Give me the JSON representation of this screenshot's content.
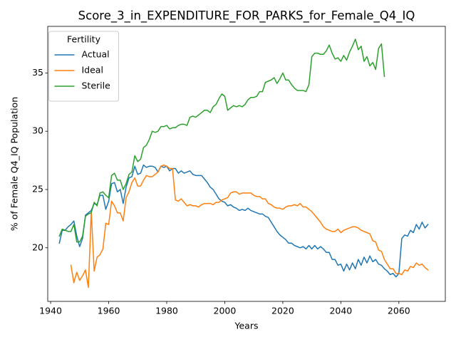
{
  "chart_data": {
    "type": "line",
    "title": "Score_3_in_EXPENDITURE_FOR_PARKS_for_Female_Q4_IQ",
    "xlabel": "Years",
    "ylabel": "% of Female Q4_IQ Population",
    "legend_title": "Fertility",
    "legend": "upper left",
    "grid": false,
    "xlim": [
      1939,
      2076
    ],
    "ylim": [
      15.4,
      39.0
    ],
    "xticks": [
      1940,
      1960,
      1980,
      2000,
      2020,
      2040,
      2060
    ],
    "yticks": [
      20,
      25,
      30,
      35
    ],
    "x": [
      1943,
      1944,
      1945,
      1946,
      1947,
      1948,
      1949,
      1950,
      1951,
      1952,
      1953,
      1954,
      1955,
      1956,
      1957,
      1958,
      1959,
      1960,
      1961,
      1962,
      1963,
      1964,
      1965,
      1966,
      1967,
      1968,
      1969,
      1970,
      1971,
      1972,
      1973,
      1974,
      1975,
      1976,
      1977,
      1978,
      1979,
      1980,
      1981,
      1982,
      1983,
      1984,
      1985,
      1986,
      1987,
      1988,
      1989,
      1990,
      1991,
      1992,
      1993,
      1994,
      1995,
      1996,
      1997,
      1998,
      1999,
      2000,
      2001,
      2002,
      2003,
      2004,
      2005,
      2006,
      2007,
      2008,
      2009,
      2010,
      2011,
      2012,
      2013,
      2014,
      2015,
      2016,
      2017,
      2018,
      2019,
      2020,
      2021,
      2022,
      2023,
      2024,
      2025,
      2026,
      2027,
      2028,
      2029,
      2030,
      2031,
      2032,
      2033,
      2034,
      2035,
      2036,
      2037,
      2038,
      2039,
      2040,
      2041,
      2042,
      2043,
      2044,
      2045,
      2046,
      2047,
      2048,
      2049,
      2050,
      2051,
      2052,
      2053,
      2054,
      2055,
      2056,
      2057,
      2058,
      2059,
      2060,
      2061,
      2062,
      2063,
      2064,
      2065,
      2066,
      2067,
      2068,
      2069,
      2070
    ],
    "series": [
      {
        "name": "Actual",
        "color": "#1f77b4",
        "values": [
          20.4,
          21.5,
          21.5,
          21.8,
          22.0,
          22.3,
          21.0,
          20.1,
          20.8,
          22.8,
          23.0,
          23.2,
          23.8,
          23.7,
          24.5,
          24.5,
          23.3,
          24.0,
          25.5,
          25.6,
          24.8,
          25.0,
          23.8,
          25.2,
          26.0,
          26.1,
          27.0,
          26.3,
          26.4,
          27.1,
          26.9,
          27.0,
          27.0,
          26.9,
          26.5,
          27.0,
          26.9,
          27.0,
          26.6,
          26.8,
          26.8,
          26.4,
          26.6,
          26.4,
          26.5,
          26.6,
          26.3,
          26.2,
          26.2,
          26.2,
          25.9,
          25.6,
          25.2,
          25.0,
          24.6,
          24.2,
          24.0,
          23.9,
          23.6,
          23.7,
          23.5,
          23.4,
          23.2,
          23.3,
          23.2,
          23.4,
          23.2,
          23.1,
          23.0,
          22.9,
          22.9,
          22.7,
          22.6,
          22.2,
          21.8,
          21.4,
          21.1,
          20.9,
          20.7,
          20.4,
          20.4,
          20.2,
          20.1,
          20.0,
          20.1,
          19.9,
          20.2,
          19.9,
          20.2,
          19.9,
          20.1,
          19.9,
          19.6,
          19.6,
          19.0,
          19.0,
          18.5,
          18.6,
          18.0,
          18.6,
          18.1,
          18.7,
          18.2,
          19.0,
          18.5,
          19.2,
          18.7,
          19.3,
          18.8,
          19.0,
          18.6,
          18.5,
          18.2,
          18.0,
          17.7,
          17.8,
          17.5,
          17.8,
          20.8,
          21.1,
          21.0,
          21.5,
          21.3,
          22.0,
          21.6,
          22.2,
          21.7,
          22.0
        ]
      },
      {
        "name": "Ideal",
        "color": "#ff7f0e",
        "values": [
          null,
          null,
          null,
          null,
          18.5,
          17.0,
          17.9,
          17.2,
          17.6,
          18.1,
          16.6,
          23.1,
          18.0,
          19.2,
          19.4,
          19.9,
          22.1,
          22.0,
          24.0,
          23.6,
          23.0,
          23.0,
          22.3,
          24.3,
          24.8,
          25.6,
          26.0,
          25.3,
          25.3,
          25.8,
          26.2,
          26.1,
          26.1,
          26.3,
          26.5,
          27.0,
          27.1,
          27.0,
          26.8,
          26.8,
          24.1,
          24.0,
          24.2,
          23.9,
          23.6,
          23.7,
          23.6,
          23.6,
          23.5,
          23.7,
          23.8,
          23.8,
          23.8,
          23.7,
          23.9,
          23.9,
          24.1,
          24.2,
          24.3,
          24.7,
          24.8,
          24.8,
          24.6,
          24.7,
          24.7,
          24.7,
          24.7,
          24.5,
          24.4,
          24.4,
          24.2,
          24.2,
          23.8,
          23.7,
          23.5,
          23.4,
          23.4,
          23.3,
          23.5,
          23.6,
          23.6,
          23.7,
          23.6,
          23.8,
          23.5,
          23.5,
          23.3,
          23.1,
          22.8,
          22.5,
          22.2,
          21.8,
          21.6,
          21.5,
          21.4,
          21.4,
          21.6,
          21.3,
          21.5,
          21.6,
          21.7,
          21.8,
          21.8,
          21.7,
          21.5,
          21.4,
          21.3,
          21.2,
          20.6,
          20.5,
          19.8,
          19.7,
          19.0,
          18.6,
          18.2,
          18.2,
          17.8,
          17.8,
          17.7,
          18.1,
          18.0,
          18.4,
          18.3,
          18.7,
          18.5,
          18.6,
          18.3,
          18.1
        ]
      },
      {
        "name": "Sterile",
        "color": "#2ca02c",
        "values": [
          21.0,
          21.6,
          21.5,
          21.4,
          21.4,
          22.0,
          20.5,
          20.5,
          21.0,
          22.7,
          22.9,
          23.0,
          23.9,
          23.6,
          24.7,
          24.8,
          24.5,
          24.3,
          26.2,
          26.4,
          25.8,
          25.8,
          25.0,
          25.5,
          26.3,
          26.5,
          27.9,
          27.4,
          27.6,
          28.6,
          28.8,
          29.3,
          30.0,
          29.9,
          30.0,
          30.4,
          30.4,
          30.5,
          30.2,
          30.3,
          30.3,
          30.5,
          30.6,
          30.6,
          30.5,
          31.2,
          31.3,
          31.2,
          31.4,
          31.6,
          31.8,
          31.8,
          31.6,
          32.1,
          32.3,
          32.8,
          33.2,
          33.0,
          31.8,
          32.0,
          32.2,
          32.1,
          32.2,
          32.1,
          32.3,
          32.7,
          32.9,
          32.9,
          33.0,
          33.4,
          33.4,
          34.2,
          34.3,
          34.4,
          34.6,
          34.1,
          34.5,
          35.0,
          34.4,
          34.4,
          34.0,
          33.7,
          33.5,
          33.5,
          33.5,
          33.4,
          34.0,
          36.4,
          36.7,
          36.7,
          36.6,
          36.6,
          36.9,
          37.4,
          36.7,
          36.2,
          36.3,
          36.0,
          36.5,
          36.1,
          36.8,
          37.3,
          37.9,
          37.0,
          37.3,
          36.0,
          36.4,
          35.6,
          35.9,
          35.3,
          37.1,
          37.5,
          34.7,
          null,
          null,
          null,
          null,
          null,
          null,
          null,
          null,
          null,
          null,
          null,
          null,
          null,
          null,
          null
        ]
      }
    ]
  }
}
